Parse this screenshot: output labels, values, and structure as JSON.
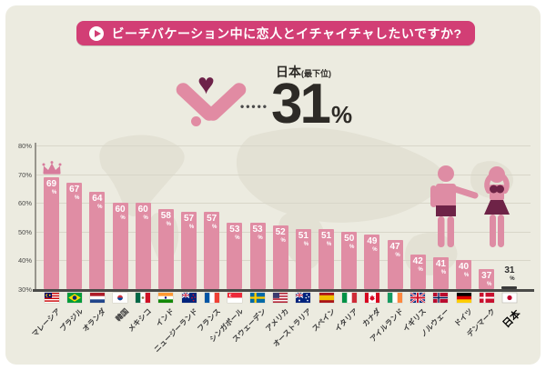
{
  "page": {
    "card_color": "#ecebe0",
    "accent_pink": "#d23e75",
    "bar_pink": "#e08da4",
    "dark_maroon": "#6d2149"
  },
  "header": {
    "title": "ビーチバケーション中に恋人とイチャイチャしたいですか?"
  },
  "highlight": {
    "country": "日本",
    "rank_note": "(最下位)",
    "dots": "•••••",
    "value": "31",
    "unit": "%"
  },
  "chart_data": {
    "type": "bar",
    "title": "ビーチバケーション中に恋人とイチャイチャしたいですか?",
    "ylabel": "",
    "xlabel": "",
    "ylim": [
      30,
      80
    ],
    "yticks": [
      "80%",
      "70%",
      "60%",
      "50%",
      "40%",
      "30%"
    ],
    "grid": true,
    "legend": "none",
    "categories": [
      "マレーシア",
      "ブラジル",
      "オランダ",
      "韓国",
      "メキシコ",
      "インド",
      "ニュージーランド",
      "フランス",
      "シンガポール",
      "スウェーデン",
      "アメリカ",
      "オーストラリア",
      "スペイン",
      "イタリア",
      "カナダ",
      "アイルランド",
      "イギリス",
      "ノルウェー",
      "ドイツ",
      "デンマーク",
      "日本"
    ],
    "values": [
      69,
      67,
      64,
      60,
      60,
      58,
      57,
      57,
      53,
      53,
      52,
      51,
      51,
      50,
      49,
      47,
      42,
      41,
      40,
      37,
      31
    ],
    "unit": "%",
    "flags": [
      "flag-malaysia",
      "flag-brazil",
      "flag-netherlands",
      "flag-south-korea",
      "flag-mexico",
      "flag-india",
      "flag-new-zealand",
      "flag-france",
      "flag-singapore",
      "flag-sweden",
      "flag-usa",
      "flag-australia",
      "flag-spain",
      "flag-italy",
      "flag-canada",
      "flag-ireland",
      "flag-uk",
      "flag-norway",
      "flag-germany",
      "flag-denmark",
      "flag-japan"
    ],
    "crown_index": 0,
    "highlight_index": 20,
    "bar_color": "#e08da4",
    "highlight_color": "#3a3a3a"
  }
}
